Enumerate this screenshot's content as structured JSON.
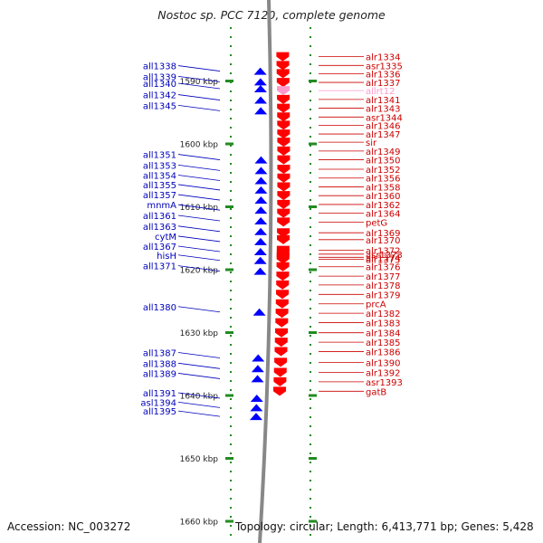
{
  "title": "Nostoc sp. PCC 7120, complete genome",
  "accession": "Accession: NC_003272",
  "topology": "Topology: circular; Length: 6,413,771 bp; Genes: 5,428",
  "scale_ticks": [
    {
      "label": "1590 kbp",
      "kbp": 1590
    },
    {
      "label": "1600 kbp",
      "kbp": 1600
    },
    {
      "label": "1610 kbp",
      "kbp": 1610
    },
    {
      "label": "1620 kbp",
      "kbp": 1620
    },
    {
      "label": "1630 kbp",
      "kbp": 1630
    },
    {
      "label": "1640 kbp",
      "kbp": 1640
    },
    {
      "label": "1650 kbp",
      "kbp": 1650
    },
    {
      "label": "1660 kbp",
      "kbp": 1660
    }
  ],
  "reverse_genes": [
    {
      "name": "all1338",
      "kbp": 1588.5
    },
    {
      "name": "all1339",
      "kbp": 1590.2
    },
    {
      "name": "all1340",
      "kbp": 1591.3
    },
    {
      "name": "all1342",
      "kbp": 1593.1
    },
    {
      "name": "all1345",
      "kbp": 1594.8
    },
    {
      "name": "all1351",
      "kbp": 1602.6
    },
    {
      "name": "all1353",
      "kbp": 1604.3
    },
    {
      "name": "all1354",
      "kbp": 1605.9
    },
    {
      "name": "all1355",
      "kbp": 1607.4
    },
    {
      "name": "all1357",
      "kbp": 1609.0
    },
    {
      "name": "mnmA",
      "kbp": 1610.6
    },
    {
      "name": "all1361",
      "kbp": 1612.3
    },
    {
      "name": "all1363",
      "kbp": 1614.0
    },
    {
      "name": "cytM",
      "kbp": 1615.6
    },
    {
      "name": "all1367",
      "kbp": 1617.2
    },
    {
      "name": "hisH",
      "kbp": 1618.6
    },
    {
      "name": "all1371",
      "kbp": 1620.3
    },
    {
      "name": "all1380",
      "kbp": 1626.8
    },
    {
      "name": "all1387",
      "kbp": 1634.1
    },
    {
      "name": "all1388",
      "kbp": 1635.8
    },
    {
      "name": "all1389",
      "kbp": 1637.4
    },
    {
      "name": "all1391",
      "kbp": 1640.5
    },
    {
      "name": "asl1394",
      "kbp": 1642.0
    },
    {
      "name": "all1395",
      "kbp": 1643.4
    }
  ],
  "forward_genes": [
    {
      "name": "alr1334",
      "kbp": 1586.2
    },
    {
      "name": "asr1335",
      "kbp": 1587.6
    },
    {
      "name": "alr1336",
      "kbp": 1588.9
    },
    {
      "name": "alr1337",
      "kbp": 1590.3
    },
    {
      "name": "allrt12",
      "kbp": 1591.6
    },
    {
      "name": "alr1341",
      "kbp": 1593.0
    },
    {
      "name": "alr1343",
      "kbp": 1594.4
    },
    {
      "name": "asr1344",
      "kbp": 1595.8
    },
    {
      "name": "alr1346",
      "kbp": 1597.1
    },
    {
      "name": "alr1347",
      "kbp": 1598.5
    },
    {
      "name": "sir",
      "kbp": 1599.8
    },
    {
      "name": "alr1349",
      "kbp": 1601.2
    },
    {
      "name": "alr1350",
      "kbp": 1602.6
    },
    {
      "name": "alr1352",
      "kbp": 1604.1
    },
    {
      "name": "alr1356",
      "kbp": 1605.5
    },
    {
      "name": "alr1358",
      "kbp": 1606.9
    },
    {
      "name": "alr1360",
      "kbp": 1608.3
    },
    {
      "name": "alr1362",
      "kbp": 1609.7
    },
    {
      "name": "alr1364",
      "kbp": 1611.1
    },
    {
      "name": "petG",
      "kbp": 1612.5
    },
    {
      "name": "alr1369",
      "kbp": 1614.2
    },
    {
      "name": "alr1370",
      "kbp": 1615.3
    },
    {
      "name": "alr1372",
      "kbp": 1617.0
    },
    {
      "name": "asr1373",
      "kbp": 1617.6
    },
    {
      "name": "alr1374",
      "kbp": 1618.1
    },
    {
      "name": "alr1375",
      "kbp": 1618.4
    },
    {
      "name": "alr1376",
      "kbp": 1619.6
    },
    {
      "name": "alr1377",
      "kbp": 1621.1
    },
    {
      "name": "alr1378",
      "kbp": 1622.5
    },
    {
      "name": "alr1379",
      "kbp": 1624.0
    },
    {
      "name": "prcA",
      "kbp": 1625.5
    },
    {
      "name": "alr1382",
      "kbp": 1627.0
    },
    {
      "name": "alr1383",
      "kbp": 1628.5
    },
    {
      "name": "alr1384",
      "kbp": 1630.1
    },
    {
      "name": "alr1385",
      "kbp": 1631.6
    },
    {
      "name": "alr1386",
      "kbp": 1633.1
    },
    {
      "name": "alr1390",
      "kbp": 1634.8
    },
    {
      "name": "alr1392",
      "kbp": 1636.4
    },
    {
      "name": "asr1393",
      "kbp": 1637.9
    },
    {
      "name": "gatB",
      "kbp": 1639.4
    }
  ],
  "colors": {
    "forward_label": "#cc0000",
    "reverse_label": "#0000bb",
    "forward_gene": "#ff0000",
    "reverse_gene": "#0000ff",
    "trna_label": "#ff99cc",
    "tick": "#228b22",
    "backbone": "#888888"
  }
}
